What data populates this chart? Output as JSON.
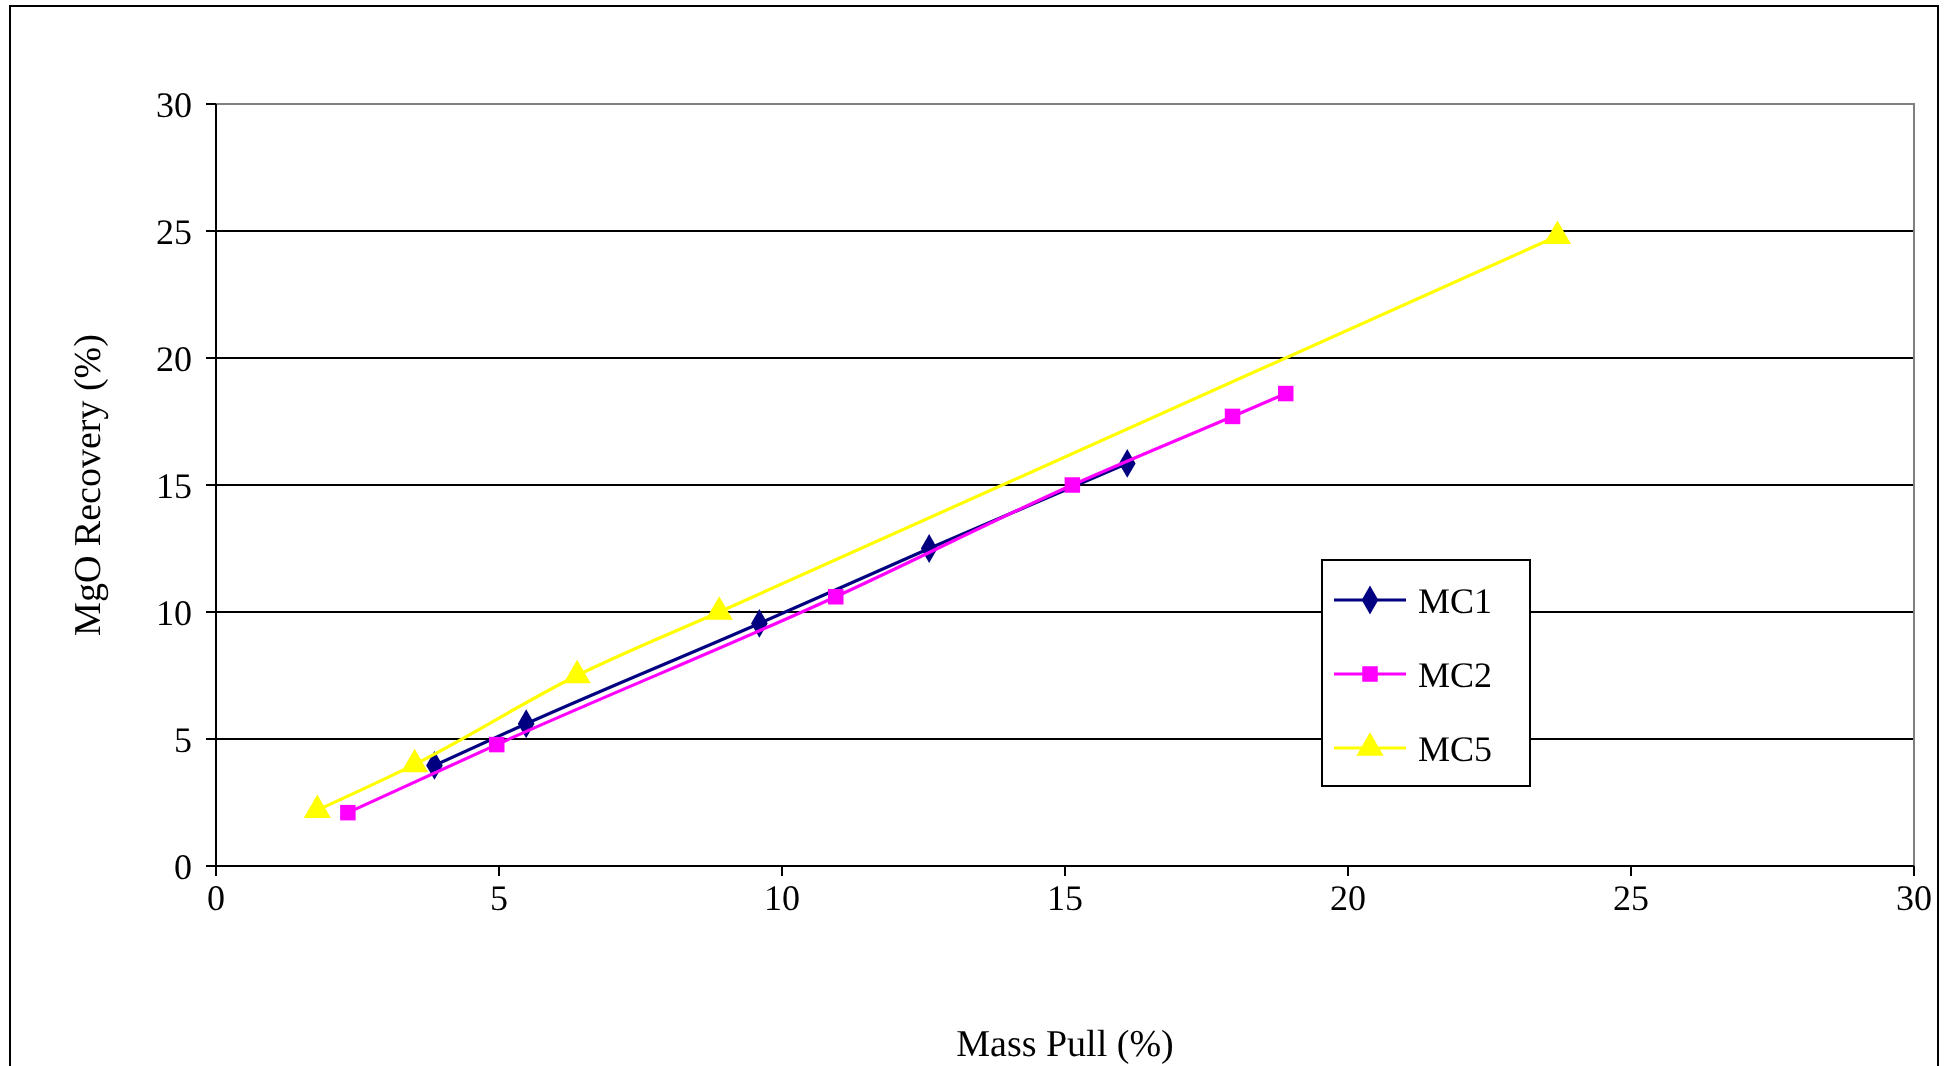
{
  "chart_data": {
    "type": "line",
    "xlabel": "Mass Pull (%)",
    "ylabel": "MgO Recovery (%)",
    "xlim": [
      0,
      30
    ],
    "xticks": [
      0,
      5,
      10,
      15,
      20,
      25,
      30
    ],
    "ylim": [
      0,
      30
    ],
    "yticks": [
      0,
      5,
      10,
      15,
      20,
      25,
      30
    ],
    "grid": "y",
    "legend": "right",
    "series": [
      {
        "name": "MC1",
        "color": "#000080",
        "marker": "diamond",
        "x": [
          3.86,
          5.48,
          9.6,
          12.6,
          16.1
        ],
        "values": [
          3.96,
          5.6,
          9.55,
          12.5,
          15.85
        ]
      },
      {
        "name": "MC2",
        "color": "#ff00ff",
        "marker": "square",
        "x": [
          2.33,
          4.96,
          10.95,
          15.13,
          17.96,
          18.9
        ],
        "values": [
          2.1,
          4.78,
          10.6,
          15.0,
          17.7,
          18.6
        ]
      },
      {
        "name": "MC5",
        "color": "#ffff00",
        "marker": "triangle",
        "x": [
          1.79,
          3.51,
          6.38,
          8.89,
          23.7
        ],
        "values": [
          2.2,
          4.0,
          7.5,
          10.0,
          24.8
        ]
      }
    ]
  }
}
